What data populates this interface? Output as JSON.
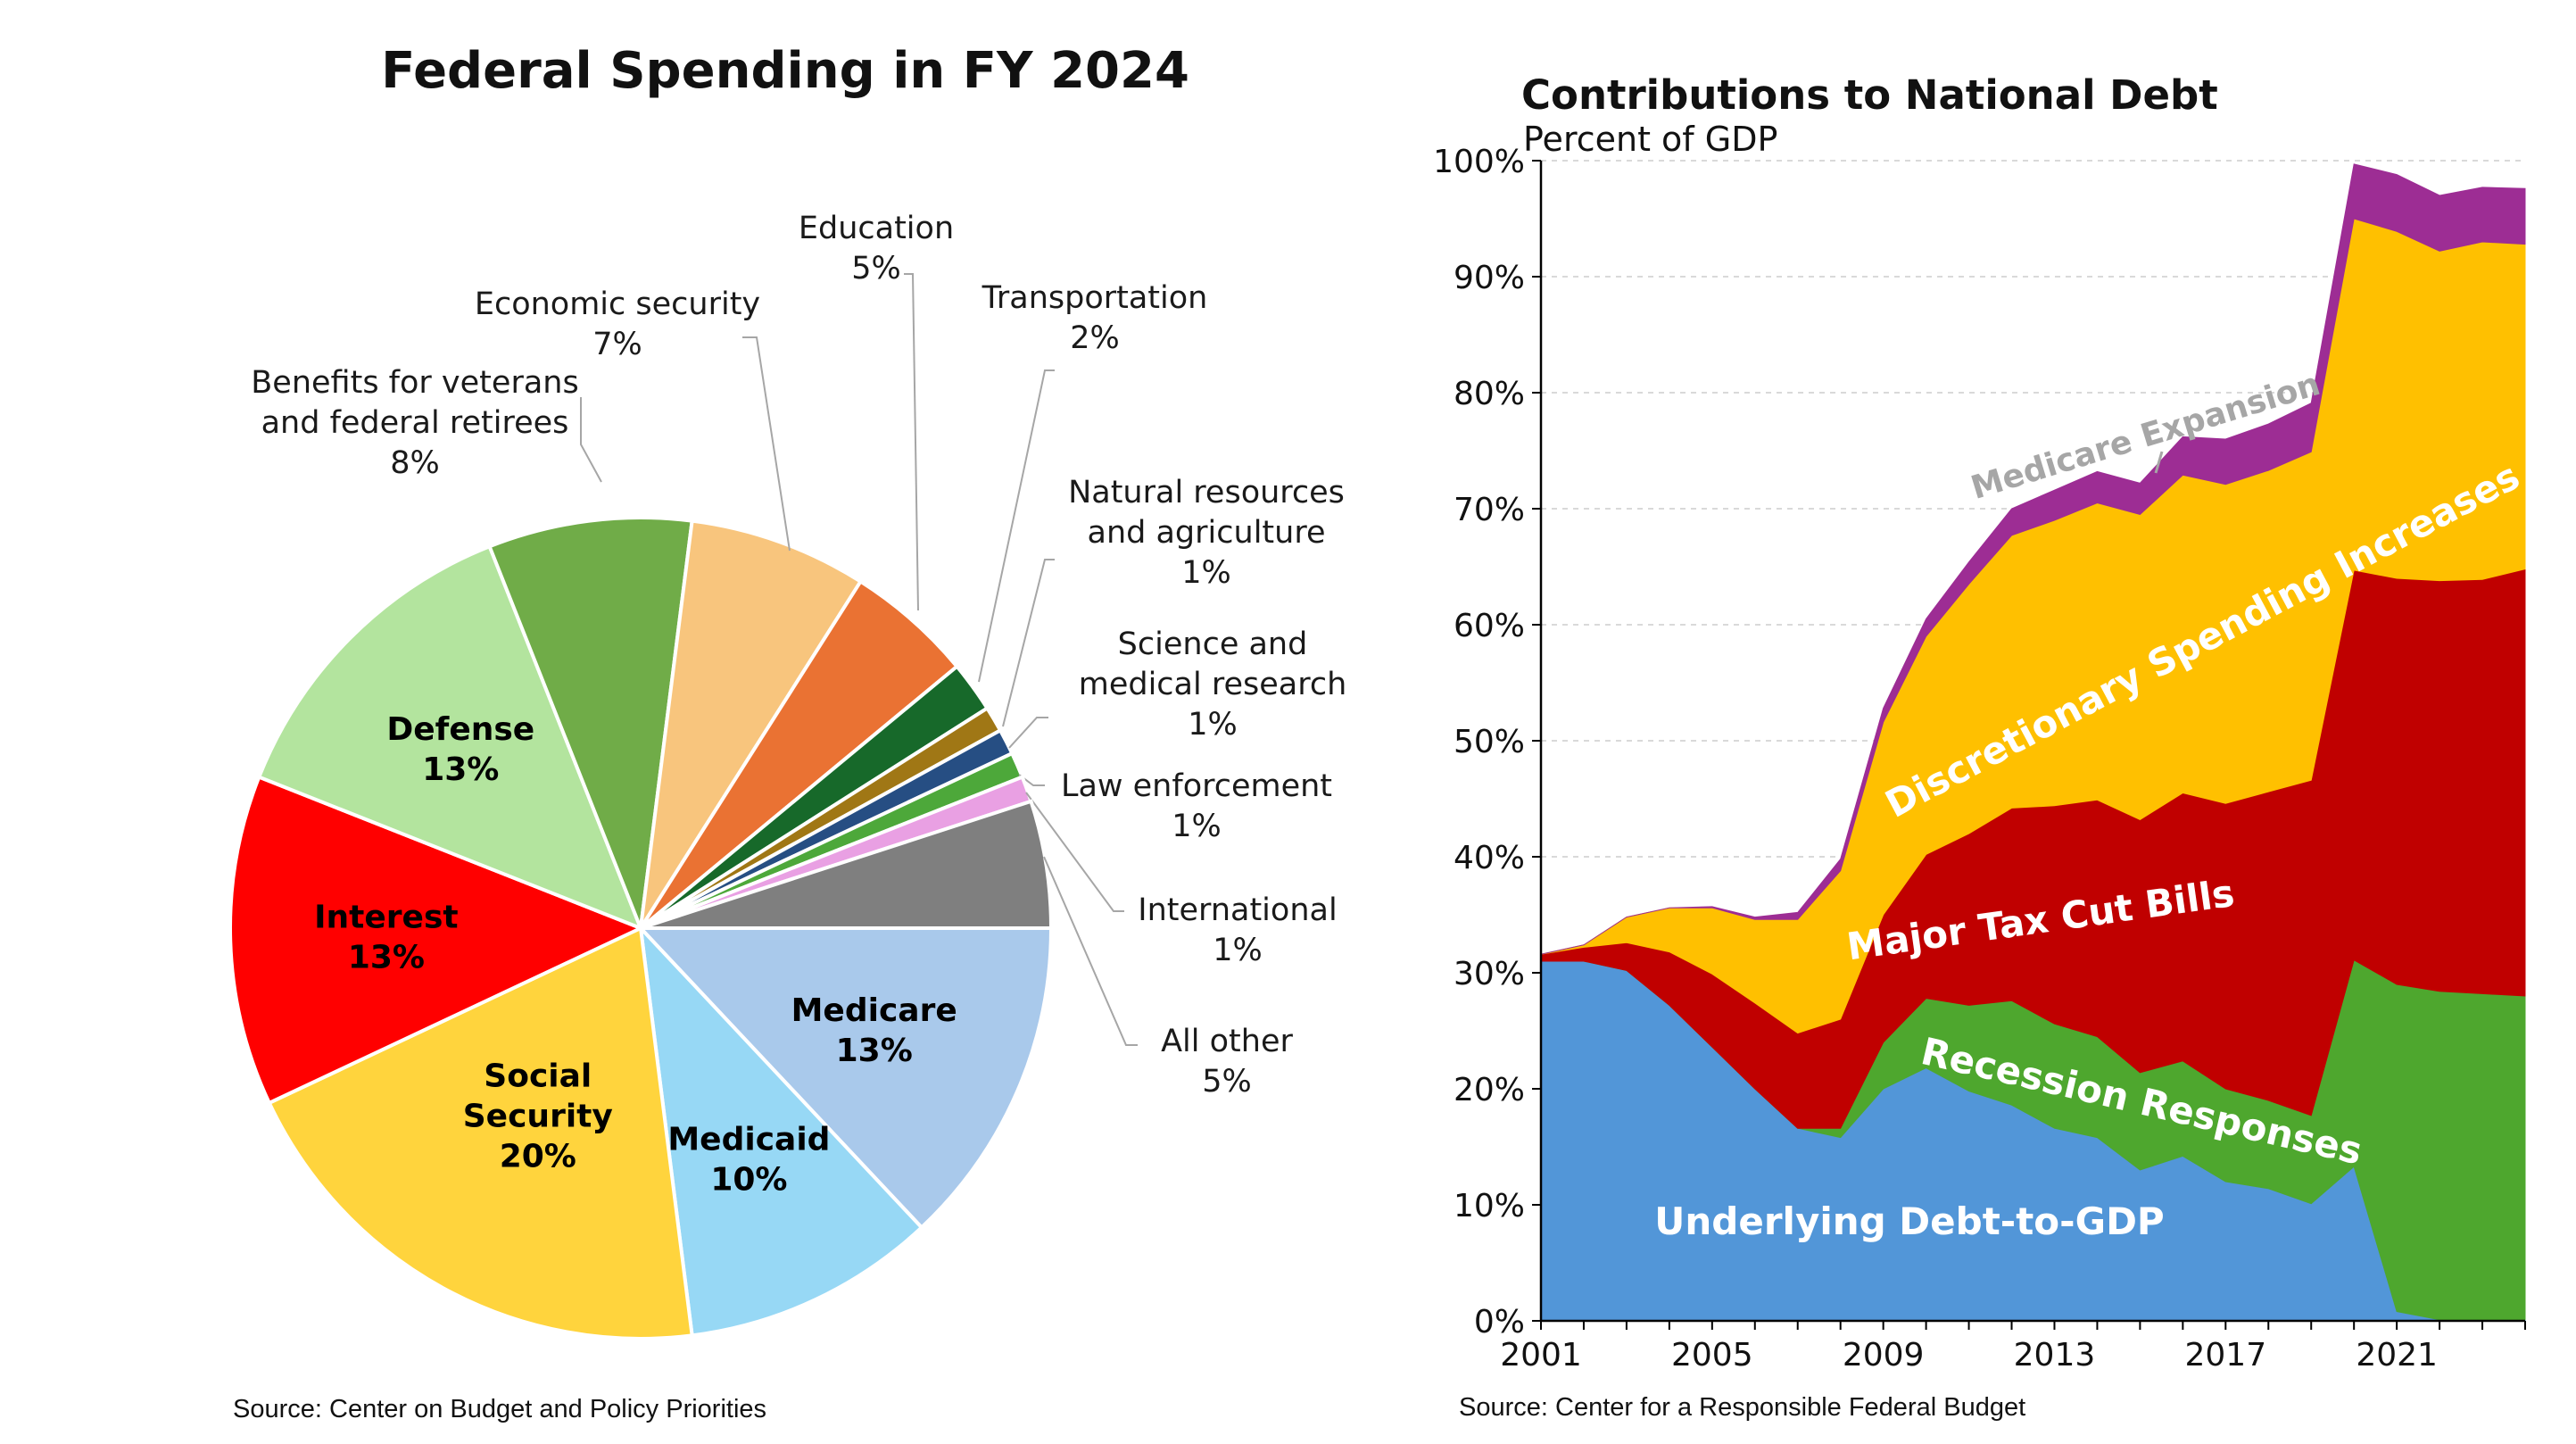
{
  "chart_data": [
    {
      "type": "pie",
      "title": "Federal Spending in FY 2024",
      "source": "Source: Center on Budget and Policy Priorities",
      "slices": [
        {
          "label": "Medicare",
          "value": 13,
          "text": "13%",
          "color": "#A9C9EB",
          "label_inside": true
        },
        {
          "label": "Medicaid",
          "value": 10,
          "text": "10%",
          "color": "#97D8F5",
          "label_inside": true
        },
        {
          "label": "Social Security",
          "lines": [
            "Social",
            "Security"
          ],
          "value": 20,
          "text": "20%",
          "color": "#FFD43D",
          "label_inside": true
        },
        {
          "label": "Interest",
          "value": 13,
          "text": "13%",
          "color": "#FF0000",
          "label_inside": true
        },
        {
          "label": "Defense",
          "value": 13,
          "text": "13%",
          "color": "#B3E49E",
          "label_inside": true
        },
        {
          "label": "Benefits for veterans and federal retirees",
          "lines": [
            "Benefits for veterans",
            "and federal retirees"
          ],
          "value": 8,
          "text": "8%",
          "color": "#70AC48",
          "label_inside": false
        },
        {
          "label": "Economic security",
          "lines": [
            "Economic security"
          ],
          "value": 7,
          "text": "7%",
          "color": "#F8C57D",
          "label_inside": false
        },
        {
          "label": "Education",
          "lines": [
            "Education"
          ],
          "value": 5,
          "text": "5%",
          "color": "#EA7233",
          "label_inside": false
        },
        {
          "label": "Transportation",
          "lines": [
            "Transportation"
          ],
          "value": 2,
          "text": "2%",
          "color": "#17692A",
          "label_inside": false
        },
        {
          "label": "Natural resources and agriculture",
          "lines": [
            "Natural resources",
            "and agriculture"
          ],
          "value": 1,
          "text": "1%",
          "color": "#A07715",
          "label_inside": false
        },
        {
          "label": "Science and medical research",
          "lines": [
            "Science and",
            "medical research"
          ],
          "value": 1,
          "text": "1%",
          "color": "#264E83",
          "label_inside": false
        },
        {
          "label": "Law enforcement",
          "lines": [
            "Law enforcement"
          ],
          "value": 1,
          "text": "1%",
          "color": "#4DA83A",
          "label_inside": false
        },
        {
          "label": "International",
          "lines": [
            "International"
          ],
          "value": 1,
          "text": "1%",
          "color": "#E9A0E3",
          "label_inside": false
        },
        {
          "label": "All other",
          "lines": [
            "All other"
          ],
          "value": 5,
          "text": "5%",
          "color": "#7F7F7F",
          "label_inside": false
        }
      ]
    },
    {
      "type": "area",
      "stacked": true,
      "title": "Contributions to National Debt",
      "subtitle": "Percent of GDP",
      "source": "Source: Center for a Responsible Federal Budget",
      "ylim": [
        0,
        100
      ],
      "xlim": [
        2001,
        2024
      ],
      "x_ticks": [
        2001,
        2005,
        2009,
        2013,
        2017,
        2021
      ],
      "y_ticks": [
        0,
        10,
        20,
        30,
        40,
        50,
        60,
        70,
        80,
        90,
        100
      ],
      "y_tick_suffix": "%",
      "grid": "horizontal dashed",
      "x": [
        2001,
        2002,
        2003,
        2004,
        2005,
        2006,
        2007,
        2008,
        2009,
        2010,
        2011,
        2012,
        2013,
        2014,
        2015,
        2016,
        2017,
        2018,
        2019,
        2020,
        2021,
        2022,
        2023,
        2024
      ],
      "series": [
        {
          "name": "Underlying Debt-to-GDP",
          "color": "#5296D8",
          "label_color": "#FFFFFF",
          "values": [
            31,
            31,
            30.2,
            27.2,
            23.6,
            20,
            16.6,
            15.8,
            20,
            21.8,
            19.8,
            18.6,
            16.6,
            15.8,
            13,
            14.2,
            12,
            11.4,
            10.1,
            13.3,
            0.8,
            0.1,
            0.1,
            0.1
          ]
        },
        {
          "name": "Recession Responses",
          "color": "#4EA72E",
          "label_color": "#FFFFFF",
          "values": [
            0,
            0,
            0,
            0,
            0,
            0,
            0,
            0.8,
            4,
            6,
            7.4,
            9,
            9,
            8.7,
            8.4,
            8.2,
            8,
            7.6,
            7.6,
            17.8,
            28.2,
            28.3,
            28.1,
            27.9
          ]
        },
        {
          "name": "Major Tax Cut Bills",
          "color": "#C00000",
          "label_color": "#FFFFFF",
          "values": [
            0.6,
            1.2,
            2.4,
            4.6,
            6.3,
            7.4,
            8.2,
            9.4,
            11,
            12.4,
            14.8,
            16.6,
            18.8,
            20.4,
            21.8,
            23.1,
            24.6,
            26.6,
            28.9,
            33.6,
            35,
            35.4,
            35.7,
            36.8
          ]
        },
        {
          "name": "Discretionary Spending Increases",
          "color": "#FFC000",
          "label_color": "#FFFFFF",
          "values": [
            0,
            0.2,
            2.2,
            3.8,
            5.7,
            7.2,
            9.8,
            12.8,
            16.6,
            18.8,
            21.5,
            23.5,
            24.6,
            25.6,
            26.3,
            27.4,
            27.5,
            27.7,
            28.3,
            30.3,
            29.9,
            28.4,
            29.1,
            28
          ]
        },
        {
          "name": "Medicare Expansion",
          "color": "#9D2D94",
          "label_color": "#A6A6A6",
          "values": [
            0,
            0,
            0,
            0,
            0.1,
            0.2,
            0.6,
            1,
            1.2,
            1.5,
            1.9,
            2.3,
            2.6,
            2.7,
            2.7,
            3.3,
            3.9,
            4,
            4.2,
            4.7,
            4.9,
            4.8,
            4.7,
            4.8
          ]
        }
      ]
    }
  ]
}
